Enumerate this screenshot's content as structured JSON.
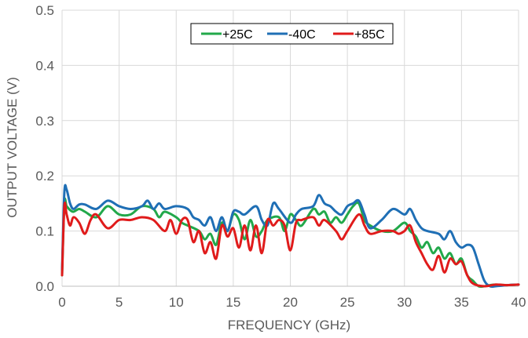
{
  "chart_data": {
    "type": "line",
    "title": "",
    "xlabel": "FREQUENCY (GHz)",
    "ylabel": "OUTPUT VOLTAGE (V)",
    "xlim": [
      0,
      40
    ],
    "ylim": [
      0,
      0.5
    ],
    "xticks": [
      "0",
      "5",
      "10",
      "15",
      "20",
      "25",
      "30",
      "35",
      "40"
    ],
    "yticks": [
      "0.0",
      "0.1",
      "0.2",
      "0.3",
      "0.4",
      "0.5"
    ],
    "grid": true,
    "legend_position": "top-center",
    "series": [
      {
        "name": "+25C",
        "color": "#22a84a",
        "x": [
          0,
          0.2,
          0.4,
          0.7,
          1,
          1.5,
          2,
          3,
          4,
          5,
          6,
          7,
          8,
          8.5,
          9,
          10,
          10.5,
          11,
          12,
          12.5,
          13,
          13.5,
          14,
          14.5,
          15,
          15.5,
          16,
          16.5,
          17,
          17.5,
          18,
          19,
          19.5,
          20,
          20.5,
          21,
          22,
          22.5,
          23,
          23.5,
          24,
          24.5,
          25,
          25.5,
          26,
          26.5,
          27,
          28,
          29,
          30,
          30.5,
          31,
          31.5,
          32,
          32.5,
          33,
          33.5,
          34,
          34.5,
          35,
          35.5,
          36,
          36.5,
          37,
          37.5,
          38,
          39,
          40
        ],
        "y": [
          0.02,
          0.15,
          0.145,
          0.138,
          0.135,
          0.14,
          0.135,
          0.125,
          0.145,
          0.13,
          0.13,
          0.145,
          0.14,
          0.125,
          0.135,
          0.125,
          0.115,
          0.11,
          0.1,
          0.085,
          0.095,
          0.075,
          0.115,
          0.1,
          0.13,
          0.12,
          0.085,
          0.12,
          0.09,
          0.1,
          0.12,
          0.125,
          0.1,
          0.13,
          0.12,
          0.11,
          0.14,
          0.13,
          0.135,
          0.115,
          0.125,
          0.115,
          0.13,
          0.145,
          0.15,
          0.12,
          0.11,
          0.1,
          0.1,
          0.115,
          0.1,
          0.09,
          0.07,
          0.08,
          0.06,
          0.07,
          0.05,
          0.06,
          0.04,
          0.05,
          0.02,
          0.01,
          0,
          0,
          0.002,
          0.003,
          0.002,
          0.003
        ]
      },
      {
        "name": "-40C",
        "color": "#1f6fb5",
        "x": [
          0,
          0.2,
          0.4,
          0.7,
          1,
          1.5,
          2,
          3,
          4,
          5,
          6,
          7,
          7.5,
          8,
          8.5,
          9,
          10,
          11,
          11.5,
          12,
          12.5,
          13,
          13.5,
          14,
          14.5,
          15,
          15.5,
          16,
          17,
          17.5,
          18,
          18.5,
          19,
          20,
          20.5,
          21,
          22,
          22.5,
          23,
          23.5,
          24,
          24.5,
          25,
          25.5,
          26,
          26.5,
          27,
          28,
          29,
          30,
          30.5,
          31,
          31.5,
          32,
          33,
          33.5,
          34,
          34.5,
          35,
          35.5,
          36,
          36.5,
          37,
          37.5,
          38,
          39,
          40
        ],
        "y": [
          0.03,
          0.17,
          0.175,
          0.15,
          0.14,
          0.148,
          0.148,
          0.14,
          0.155,
          0.145,
          0.14,
          0.145,
          0.155,
          0.14,
          0.15,
          0.14,
          0.145,
          0.14,
          0.125,
          0.12,
          0.11,
          0.125,
          0.1,
          0.125,
          0.1,
          0.135,
          0.135,
          0.13,
          0.145,
          0.12,
          0.11,
          0.15,
          0.14,
          0.115,
          0.13,
          0.14,
          0.145,
          0.165,
          0.15,
          0.145,
          0.135,
          0.13,
          0.145,
          0.15,
          0.155,
          0.13,
          0.105,
          0.12,
          0.14,
          0.13,
          0.14,
          0.12,
          0.105,
          0.1,
          0.095,
          0.085,
          0.1,
          0.08,
          0.07,
          0.075,
          0.07,
          0.04,
          0.01,
          0,
          0,
          0.002,
          0.003
        ]
      },
      {
        "name": "+85C",
        "color": "#e01b1b",
        "x": [
          0,
          0.2,
          0.4,
          0.7,
          1,
          1.5,
          2,
          2.5,
          3,
          4,
          5,
          6,
          7,
          8,
          9,
          9.5,
          10,
          10.5,
          11,
          11.5,
          12,
          12.5,
          13,
          13.5,
          14,
          14.5,
          15,
          15.5,
          16,
          16.5,
          17,
          17.5,
          18,
          18.5,
          19,
          19.5,
          20,
          20.5,
          21,
          22,
          22.5,
          23,
          24,
          24.5,
          25,
          26,
          26.5,
          27,
          28,
          29,
          29.5,
          30,
          30.5,
          31,
          31.5,
          32,
          32.5,
          33,
          33.5,
          34,
          34.5,
          35,
          35.5,
          36,
          37,
          38,
          39,
          40
        ],
        "y": [
          0.02,
          0.145,
          0.13,
          0.11,
          0.125,
          0.115,
          0.095,
          0.12,
          0.13,
          0.105,
          0.12,
          0.12,
          0.125,
          0.12,
          0.1,
          0.12,
          0.095,
          0.12,
          0.12,
          0.08,
          0.1,
          0.06,
          0.08,
          0.05,
          0.11,
          0.09,
          0.105,
          0.07,
          0.11,
          0.065,
          0.11,
          0.06,
          0.12,
          0.11,
          0.12,
          0.11,
          0.065,
          0.115,
          0.12,
          0.125,
          0.11,
          0.12,
          0.1,
          0.085,
          0.1,
          0.13,
          0.11,
          0.095,
          0.1,
          0.1,
          0.095,
          0.1,
          0.11,
          0.08,
          0.06,
          0.04,
          0.03,
          0.055,
          0.025,
          0.05,
          0.04,
          0.045,
          0.02,
          0.005,
          0,
          0.003,
          0.002,
          0.003
        ]
      }
    ]
  }
}
